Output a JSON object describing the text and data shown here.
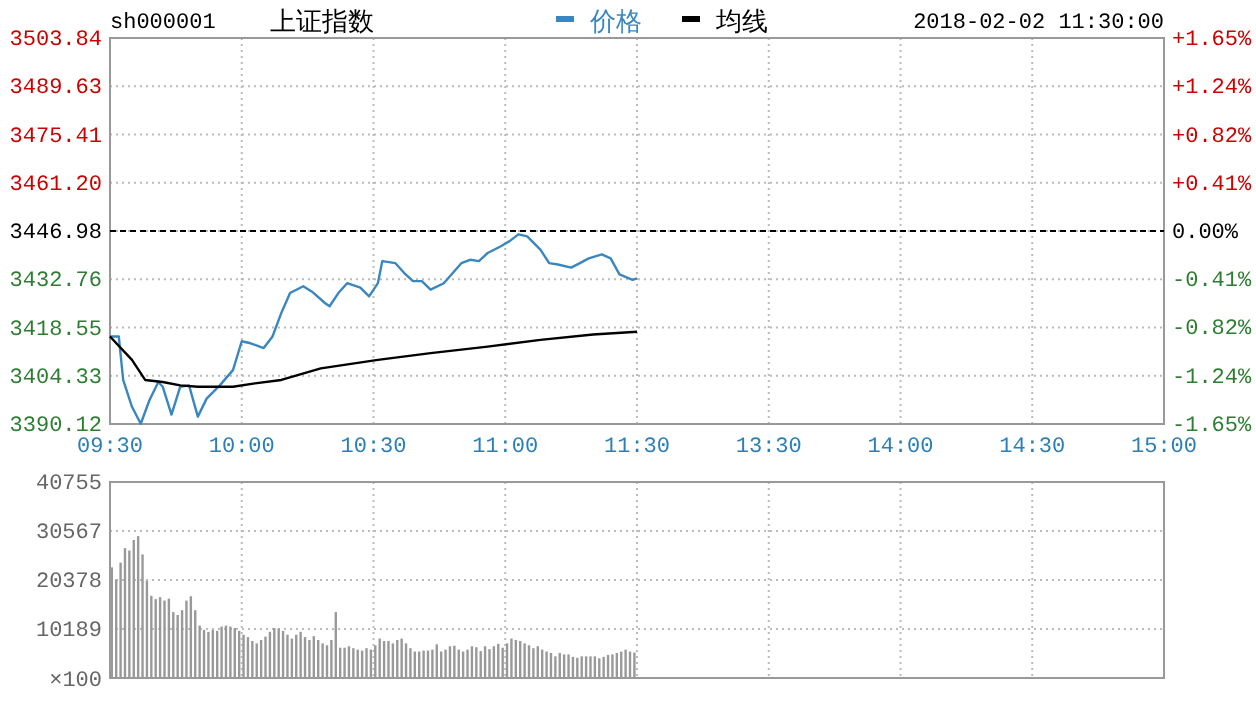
{
  "chart_data": [
    {
      "type": "line",
      "title": "上证指数",
      "subtitle": "sh000001",
      "annotations": [
        "2018-02-02 11:30:00"
      ],
      "legend": "top",
      "grid": true,
      "categories": [
        "09:30",
        null,
        null,
        null,
        null,
        null,
        null,
        null,
        null,
        null,
        null,
        null,
        null,
        null,
        null,
        null,
        null,
        null,
        null,
        null,
        null,
        null,
        null,
        null,
        null,
        null,
        null,
        null,
        null,
        null,
        "10:00",
        null,
        null,
        null,
        null,
        null,
        null,
        null,
        null,
        null,
        null,
        null,
        null,
        null,
        null,
        null,
        null,
        null,
        null,
        null,
        null,
        null,
        null,
        null,
        null,
        null,
        null,
        null,
        null,
        null,
        "10:30",
        null,
        null,
        null,
        null,
        null,
        null,
        null,
        null,
        null,
        null,
        null,
        null,
        null,
        null,
        null,
        null,
        null,
        null,
        null,
        null,
        null,
        null,
        null,
        null,
        null,
        null,
        null,
        null,
        null,
        "11:00",
        null,
        null,
        null,
        null,
        null,
        null,
        null,
        null,
        null,
        null,
        null,
        null,
        null,
        null,
        null,
        null,
        null,
        null,
        null,
        null,
        null,
        null,
        null,
        null,
        null,
        null,
        null,
        null,
        null,
        "11:30",
        null,
        null,
        null,
        null,
        null,
        null,
        null,
        null,
        null,
        null,
        null,
        null,
        null,
        null,
        null,
        null,
        null,
        null,
        null,
        null,
        null,
        null,
        null,
        null,
        null,
        null,
        null,
        null,
        null,
        "13:30",
        null,
        null,
        null,
        null,
        null,
        null,
        null,
        null,
        null,
        null,
        null,
        null,
        null,
        null,
        null,
        null,
        null,
        null,
        null,
        null,
        null,
        null,
        null,
        null,
        null,
        null,
        null,
        null,
        null,
        "14:00",
        null,
        null,
        null,
        null,
        null,
        null,
        null,
        null,
        null,
        null,
        null,
        null,
        null,
        null,
        null,
        null,
        null,
        null,
        null,
        null,
        null,
        null,
        null,
        null,
        null,
        null,
        null,
        null,
        null,
        "14:30",
        null,
        null,
        null,
        null,
        null,
        null,
        null,
        null,
        null,
        null,
        null,
        null,
        null,
        null,
        null,
        null,
        null,
        null,
        null,
        null,
        null,
        null,
        null,
        null,
        null,
        null,
        null,
        null,
        null,
        "15:00"
      ],
      "ylim": [
        3390.12,
        3503.84
      ],
      "yticks": [
        3390.12,
        3404.33,
        3418.55,
        3432.76,
        3446.98,
        {
          "value": 3461.2,
          "label": "3461.20"
        },
        3475.41,
        3489.63,
        3503.84
      ],
      "y2lim": [
        -1.65,
        1.65
      ],
      "y2ticks": [
        {
          "value": -1.65,
          "label": "-1.65%"
        },
        {
          "value": -1.24,
          "label": "-1.24%"
        },
        {
          "value": -0.82,
          "label": "-0.82%"
        },
        {
          "value": -0.41,
          "label": "-0.41%"
        },
        {
          "value": 0,
          "label": "0.00%"
        },
        {
          "value": 0.41,
          "label": "+0.41%"
        },
        {
          "value": 0.82,
          "label": "+0.82%"
        },
        {
          "value": 1.24,
          "label": "+1.24%"
        },
        {
          "value": 1.65,
          "label": "+1.65%"
        }
      ],
      "ref_lines": [
        {
          "axis": "y",
          "value": 3446.98,
          "color": "#000000",
          "line_style": "dashed"
        }
      ],
      "series": [
        {
          "name": "价格",
          "color": "#3a87c0",
          "values": [
            3415.9,
            null,
            3415.9,
            3403.1,
            null,
            3395.2,
            null,
            3390.2,
            null,
            3397.2,
            null,
            3402.5,
            3401.1,
            null,
            3392.9,
            null,
            3401.1,
            null,
            3401.5,
            null,
            3392.3,
            null,
            3397.6,
            null,
            null,
            3401.5,
            null,
            null,
            3406.0,
            null,
            3414.5,
            null,
            3413.9,
            null,
            null,
            3412.5,
            null,
            3415.9,
            null,
            3422.8,
            null,
            3428.7,
            null,
            null,
            3430.7,
            null,
            3429.1,
            null,
            null,
            3425.7,
            3424.8,
            null,
            3428.7,
            null,
            3431.6,
            null,
            null,
            3430.3,
            null,
            3427.7,
            null,
            3431.6,
            3438.1,
            null,
            null,
            3437.5,
            null,
            3434.6,
            null,
            3432.2,
            null,
            3432.2,
            null,
            3429.7,
            null,
            null,
            3431.6,
            null,
            null,
            null,
            3437.5,
            null,
            3438.5,
            null,
            3438.1,
            null,
            3440.5,
            null,
            null,
            3442.5,
            null,
            3444.0,
            null,
            3446.0,
            null,
            3445.4,
            null,
            null,
            3441.5,
            null,
            3437.5,
            null,
            3437.1,
            null,
            null,
            3436.2,
            null,
            3437.5,
            null,
            3438.9,
            null,
            null,
            3440.1,
            null,
            3438.9,
            null,
            3434.2,
            null,
            null,
            3432.6,
            3433.0,
            null,
            null,
            null,
            null,
            null,
            null,
            null,
            null,
            null,
            null,
            null,
            null,
            null,
            null,
            null,
            null,
            null,
            null,
            null,
            null,
            null,
            null,
            null,
            null,
            null,
            null,
            null,
            null,
            null,
            null,
            null,
            null,
            null,
            null,
            null,
            null,
            null,
            null,
            null,
            null,
            null,
            null,
            null,
            null,
            null,
            null,
            null,
            null,
            null,
            null,
            null,
            null,
            null,
            null,
            null,
            null,
            null,
            null,
            null,
            null,
            null,
            null,
            null,
            null,
            null,
            null,
            null,
            null,
            null,
            null,
            null,
            null,
            null,
            null,
            null,
            null,
            null,
            null,
            null,
            null,
            null,
            null,
            null,
            null,
            null,
            null,
            null,
            null,
            null,
            null,
            null,
            null,
            null,
            null,
            null,
            null,
            null,
            null,
            null,
            null,
            null,
            null,
            null,
            null,
            null,
            null,
            null,
            null,
            null,
            null,
            null,
            null,
            null,
            null,
            null,
            null,
            null,
            null,
            null,
            null
          ]
        },
        {
          "name": "均线",
          "color": "#000000",
          "values": [
            3415.9,
            null,
            null,
            null,
            null,
            3409.0,
            null,
            null,
            3403.1,
            null,
            null,
            null,
            3402.5,
            null,
            null,
            null,
            3401.5,
            null,
            null,
            null,
            3401.1,
            null,
            null,
            null,
            null,
            null,
            null,
            null,
            3401.1,
            null,
            null,
            null,
            null,
            3402.1,
            null,
            null,
            null,
            null,
            null,
            3403.1,
            null,
            null,
            null,
            null,
            null,
            null,
            null,
            null,
            3406.5,
            null,
            null,
            null,
            null,
            null,
            null,
            null,
            null,
            null,
            null,
            null,
            null,
            3409.0,
            null,
            null,
            null,
            null,
            null,
            null,
            null,
            null,
            null,
            null,
            null,
            3411.0,
            null,
            null,
            null,
            null,
            null,
            null,
            null,
            null,
            null,
            null,
            null,
            null,
            3412.9,
            null,
            null,
            null,
            null,
            null,
            null,
            null,
            null,
            null,
            null,
            null,
            3414.9,
            null,
            null,
            null,
            null,
            null,
            null,
            null,
            null,
            null,
            null,
            null,
            3416.5,
            null,
            null,
            null,
            null,
            null,
            null,
            null,
            null,
            null,
            3417.3,
            null,
            null,
            null,
            null,
            null,
            null,
            null,
            null,
            null,
            null,
            null,
            null,
            null,
            null,
            null,
            null,
            null,
            null,
            null,
            null,
            null,
            null,
            null,
            null,
            null,
            null,
            null,
            null,
            null,
            null,
            null,
            null,
            null,
            null,
            null,
            null,
            null,
            null,
            null,
            null,
            null,
            null,
            null,
            null,
            null,
            null,
            null,
            null,
            null,
            null,
            null,
            null,
            null,
            null,
            null,
            null,
            null,
            null,
            null,
            null,
            null,
            null,
            null,
            null,
            null,
            null,
            null,
            null,
            null,
            null,
            null,
            null,
            null,
            null,
            null,
            null,
            null,
            null,
            null,
            null,
            null,
            null,
            null,
            null,
            null,
            null,
            null,
            null,
            null,
            null,
            null,
            null,
            null,
            null,
            null,
            null,
            null,
            null,
            null,
            null,
            null,
            null,
            null,
            null,
            null,
            null,
            null,
            null,
            null,
            null,
            null,
            null,
            null,
            null,
            null,
            null,
            null,
            null,
            null,
            null
          ]
        }
      ]
    },
    {
      "type": "bar",
      "grid": true,
      "color": "#999999",
      "ylabel": "×100",
      "categories": [
        null,
        null,
        null,
        null,
        null,
        null,
        null,
        null,
        null,
        null,
        null,
        null,
        null,
        null,
        null,
        null,
        null,
        null,
        null,
        null,
        null,
        null,
        null,
        null,
        null,
        null,
        null,
        null,
        null,
        null,
        null,
        null,
        null,
        null,
        null,
        null,
        null,
        null,
        null,
        null,
        null,
        null,
        null,
        null,
        null,
        null,
        null,
        null,
        null,
        null,
        null,
        null,
        null,
        null,
        null,
        null,
        null,
        null,
        null,
        null,
        null,
        null,
        null,
        null,
        null,
        null,
        null,
        null,
        null,
        null,
        null,
        null,
        null,
        null,
        null,
        null,
        null,
        null,
        null,
        null,
        null,
        null,
        null,
        null,
        null,
        null,
        null,
        null,
        null,
        null,
        null,
        null,
        null,
        null,
        null,
        null,
        null,
        null,
        null,
        null,
        null,
        null,
        null,
        null,
        null,
        null,
        null,
        null,
        null,
        null,
        null,
        null,
        null,
        null,
        null,
        null,
        null,
        null,
        null,
        null,
        null,
        null,
        null,
        null,
        null,
        null,
        null,
        null,
        null,
        null,
        null,
        null,
        null,
        null,
        null,
        null,
        null,
        null,
        null,
        null,
        null,
        null,
        null,
        null,
        null,
        null,
        null,
        null,
        null,
        null,
        null,
        null,
        null,
        null,
        null,
        null,
        null,
        null,
        null,
        null,
        null,
        null,
        null,
        null,
        null,
        null,
        null,
        null,
        null,
        null,
        null,
        null,
        null,
        null,
        null,
        null,
        null,
        null,
        null,
        null,
        null,
        null,
        null,
        null,
        null,
        null,
        null,
        null,
        null,
        null,
        null,
        null,
        null,
        null,
        null,
        null,
        null,
        null,
        null,
        null,
        null,
        null,
        null,
        null,
        null,
        null,
        null,
        null,
        null,
        null,
        null,
        null,
        null,
        null,
        null,
        null,
        null,
        null,
        null,
        null,
        null,
        null,
        null,
        null,
        null,
        null,
        null,
        null,
        null,
        null,
        null,
        null,
        null,
        null,
        null,
        null,
        null,
        null,
        null,
        null,
        null
      ],
      "ylim": [
        0,
        40755
      ],
      "yticks": [
        {
          "value": 0,
          "label": null
        },
        10189,
        20378,
        30567,
        40755
      ],
      "values": [
        23000,
        20500,
        24000,
        27000,
        26500,
        28700,
        29500,
        25700,
        20200,
        17100,
        16400,
        16800,
        16100,
        16500,
        13700,
        13100,
        14100,
        16100,
        17000,
        14100,
        10900,
        10000,
        9600,
        10000,
        9800,
        10700,
        10900,
        10700,
        10400,
        9800,
        9000,
        8500,
        7700,
        7200,
        7900,
        8600,
        9600,
        10400,
        10300,
        9800,
        9000,
        8200,
        9000,
        9600,
        8500,
        7900,
        8700,
        7900,
        7200,
        6800,
        7900,
        13700,
        6300,
        6300,
        6600,
        6200,
        5900,
        5700,
        6200,
        5900,
        6800,
        8200,
        7700,
        7700,
        7200,
        7900,
        8200,
        7200,
        6200,
        5500,
        5500,
        5700,
        5700,
        5900,
        7000,
        5500,
        5900,
        6600,
        6700,
        5900,
        5500,
        5900,
        6600,
        6400,
        5600,
        6600,
        6000,
        6600,
        7100,
        6300,
        7200,
        8200,
        7900,
        7700,
        7200,
        6800,
        6200,
        6600,
        5900,
        5500,
        5200,
        4500,
        5200,
        4900,
        4900,
        4400,
        4200,
        4500,
        4500,
        4500,
        4500,
        4100,
        4400,
        4800,
        4900,
        5200,
        5500,
        5900,
        5500,
        5300,
        null,
        null,
        null,
        null,
        null,
        null,
        null,
        null,
        null,
        null,
        null,
        null,
        null,
        null,
        null,
        null,
        null,
        null,
        null,
        null,
        null,
        null,
        null,
        null,
        null,
        null,
        null,
        null,
        null,
        null,
        null,
        null,
        null,
        null,
        null,
        null,
        null,
        null,
        null,
        null,
        null,
        null,
        null,
        null,
        null,
        null,
        null,
        null,
        null,
        null,
        null,
        null,
        null,
        null,
        null,
        null,
        null,
        null,
        null,
        null,
        null,
        null,
        null,
        null,
        null,
        null,
        null,
        null,
        null,
        null,
        null,
        null,
        null,
        null,
        null,
        null,
        null,
        null,
        null,
        null,
        null,
        null,
        null,
        null,
        null,
        null,
        null,
        null,
        null,
        null,
        null,
        null,
        null,
        null,
        null,
        null,
        null,
        null,
        null,
        null,
        null,
        null,
        null,
        null,
        null,
        null,
        null,
        null,
        null,
        null,
        null,
        null,
        null,
        null,
        null,
        null,
        null,
        null,
        null,
        null,
        null
      ]
    }
  ]
}
